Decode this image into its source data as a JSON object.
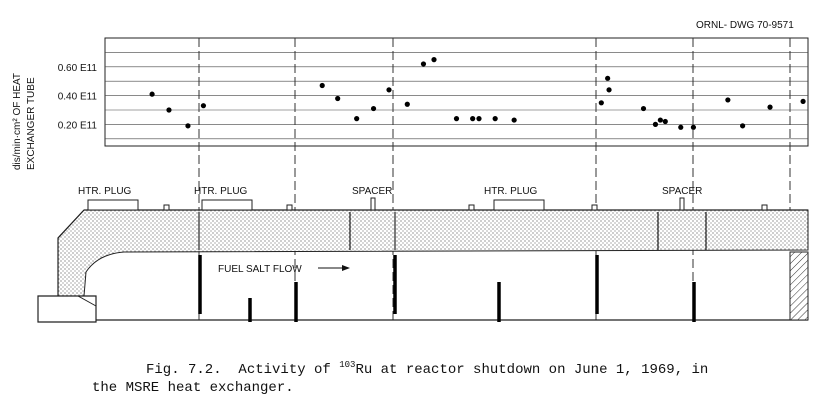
{
  "drawing_number": "ORNL- DWG 70-9571",
  "caption": {
    "line1_pre": "Fig. 7.2.  Activity of ",
    "line1_sup": "103",
    "line1_post": "Ru at reactor shutdown on June 1, 1969, in",
    "line2": "the MSRE heat exchanger."
  },
  "y_axis_label": {
    "line1": "dis/min·cm² OF HEAT",
    "line2": "EXCHANGER TUBE"
  },
  "diagram_labels": {
    "htr_plug_1": "HTR. PLUG",
    "htr_plug_2": "HTR. PLUG",
    "spacer_1": "SPACER",
    "htr_plug_3": "HTR. PLUG",
    "spacer_2": "SPACER",
    "fuel_salt_flow": "FUEL SALT FLOW"
  },
  "chart_data": {
    "type": "scatter",
    "title": "",
    "xlabel": "",
    "ylabel": "dis/min·cm² OF HEAT EXCHANGER TUBE",
    "yticks": [
      {
        "value": 0.2,
        "label": "0.20 E11"
      },
      {
        "value": 0.4,
        "label": "0.40 E11"
      },
      {
        "value": 0.6,
        "label": "0.60 E11"
      }
    ],
    "ylim": [
      0.05,
      0.8
    ],
    "xlim": [
      0,
      100
    ],
    "grid": true,
    "points": [
      {
        "x": 6.7,
        "y": 0.41
      },
      {
        "x": 9.1,
        "y": 0.3
      },
      {
        "x": 11.8,
        "y": 0.19
      },
      {
        "x": 14.0,
        "y": 0.33
      },
      {
        "x": 30.9,
        "y": 0.47
      },
      {
        "x": 33.1,
        "y": 0.38
      },
      {
        "x": 35.8,
        "y": 0.24
      },
      {
        "x": 38.2,
        "y": 0.31
      },
      {
        "x": 40.4,
        "y": 0.44
      },
      {
        "x": 43.0,
        "y": 0.34
      },
      {
        "x": 45.3,
        "y": 0.62
      },
      {
        "x": 46.8,
        "y": 0.65
      },
      {
        "x": 50.0,
        "y": 0.24
      },
      {
        "x": 52.3,
        "y": 0.24
      },
      {
        "x": 53.2,
        "y": 0.24
      },
      {
        "x": 55.5,
        "y": 0.24
      },
      {
        "x": 58.2,
        "y": 0.23
      },
      {
        "x": 70.6,
        "y": 0.35
      },
      {
        "x": 71.5,
        "y": 0.52
      },
      {
        "x": 71.7,
        "y": 0.44
      },
      {
        "x": 76.6,
        "y": 0.31
      },
      {
        "x": 78.3,
        "y": 0.2
      },
      {
        "x": 79.0,
        "y": 0.23
      },
      {
        "x": 79.7,
        "y": 0.22
      },
      {
        "x": 81.9,
        "y": 0.18
      },
      {
        "x": 83.7,
        "y": 0.18
      },
      {
        "x": 88.6,
        "y": 0.37
      },
      {
        "x": 90.7,
        "y": 0.19
      },
      {
        "x": 94.6,
        "y": 0.32
      },
      {
        "x": 99.3,
        "y": 0.36
      }
    ]
  }
}
